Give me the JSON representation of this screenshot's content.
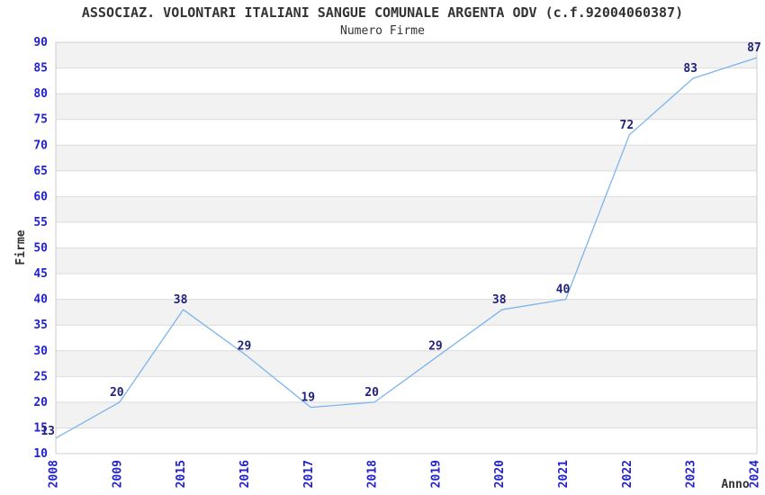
{
  "chart_data": {
    "type": "line",
    "title": "ASSOCIAZ. VOLONTARI ITALIANI SANGUE COMUNALE ARGENTA ODV (c.f.92004060387)",
    "subtitle": "Numero Firme",
    "xlabel": "Anno",
    "ylabel": "Firme",
    "categories": [
      "2008",
      "2009",
      "2015",
      "2016",
      "2017",
      "2018",
      "2019",
      "2020",
      "2021",
      "2022",
      "2023",
      "2024"
    ],
    "values": [
      13,
      20,
      38,
      29,
      19,
      20,
      29,
      38,
      40,
      72,
      83,
      87
    ],
    "ylim": [
      10,
      90
    ],
    "ytick_step": 5,
    "legend": "none",
    "grid": "horizontal-gridlines-with-alternating-bands",
    "colors": {
      "line": "#7cb5ec",
      "tick_label": "#2222cc",
      "data_label": "#22227a",
      "title_text": "#333333",
      "axis_title_text": "#333333",
      "band_gray": "#f2f2f2",
      "grid_line": "#dcdcdc",
      "plot_border": "#cccccc",
      "background": "#ffffff"
    }
  }
}
